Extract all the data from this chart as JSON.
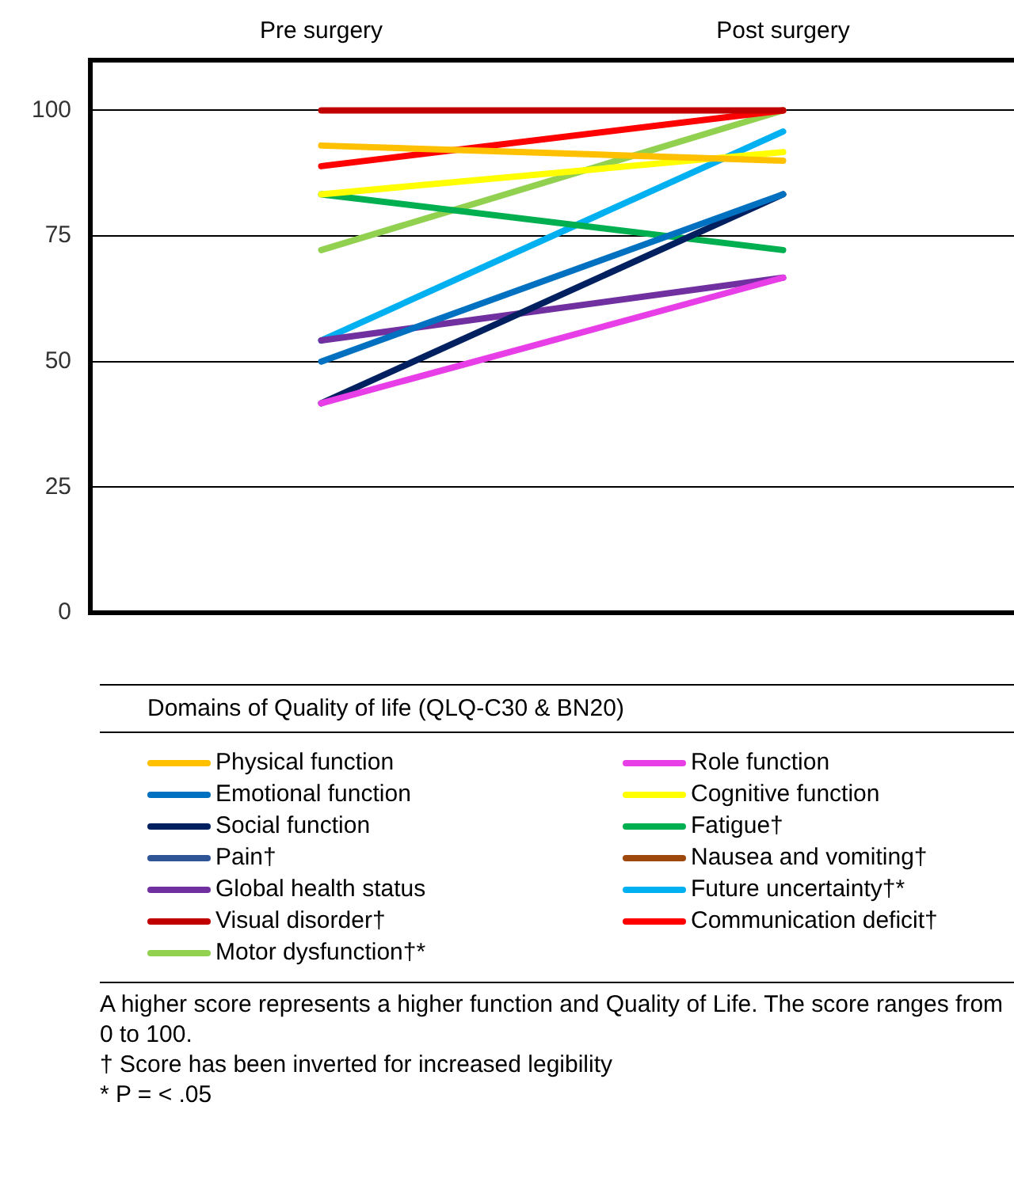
{
  "chart_data": {
    "type": "line",
    "categories": [
      "Pre surgery",
      "Post surgery"
    ],
    "ylim": [
      0,
      110
    ],
    "yticks": [
      0,
      25,
      50,
      75,
      100
    ],
    "grid": "y",
    "legend": "bottom",
    "legend_title": "Domains of Quality of life (QLQ-C30 & BN20)",
    "marker": "none",
    "line_style": "solid",
    "series": [
      {
        "name": "Physical function",
        "color": "#ffc000",
        "values": [
          93,
          90
        ]
      },
      {
        "name": "Role function",
        "color": "#e83ee8",
        "values": [
          41.7,
          66.7
        ]
      },
      {
        "name": "Emotional function",
        "color": "#0070c0",
        "values": [
          50,
          83.3
        ]
      },
      {
        "name": "Cognitive function",
        "color": "#ffff00",
        "values": [
          83.3,
          91.7
        ]
      },
      {
        "name": "Social function",
        "color": "#002060",
        "values": [
          41.7,
          83.3
        ]
      },
      {
        "name": "Fatigue†",
        "color": "#00b050",
        "values": [
          83.3,
          72.2
        ]
      },
      {
        "name": "Pain†",
        "color": "#2f5597",
        "values": [
          null,
          null
        ]
      },
      {
        "name": "Nausea and vomiting†",
        "color": "#9e480e",
        "values": [
          null,
          null
        ]
      },
      {
        "name": "Global health status",
        "color": "#7030a0",
        "values": [
          54.2,
          66.7
        ]
      },
      {
        "name": "Future uncertainty†*",
        "color": "#00b0f0",
        "values": [
          54.2,
          95.8
        ]
      },
      {
        "name": "Visual disorder†",
        "color": "#c00000",
        "values": [
          100,
          100
        ]
      },
      {
        "name": "Communication deficit†",
        "color": "#ff0000",
        "values": [
          88.9,
          100
        ]
      },
      {
        "name": "Motor dysfunction†*",
        "color": "#92d050",
        "values": [
          72.2,
          100
        ]
      }
    ],
    "annotations": [
      "A higher score represents a higher function and Quality of Life. The score ranges from 0 to 100.",
      "† Score has been inverted for increased legibility",
      "* P = < .05"
    ]
  }
}
